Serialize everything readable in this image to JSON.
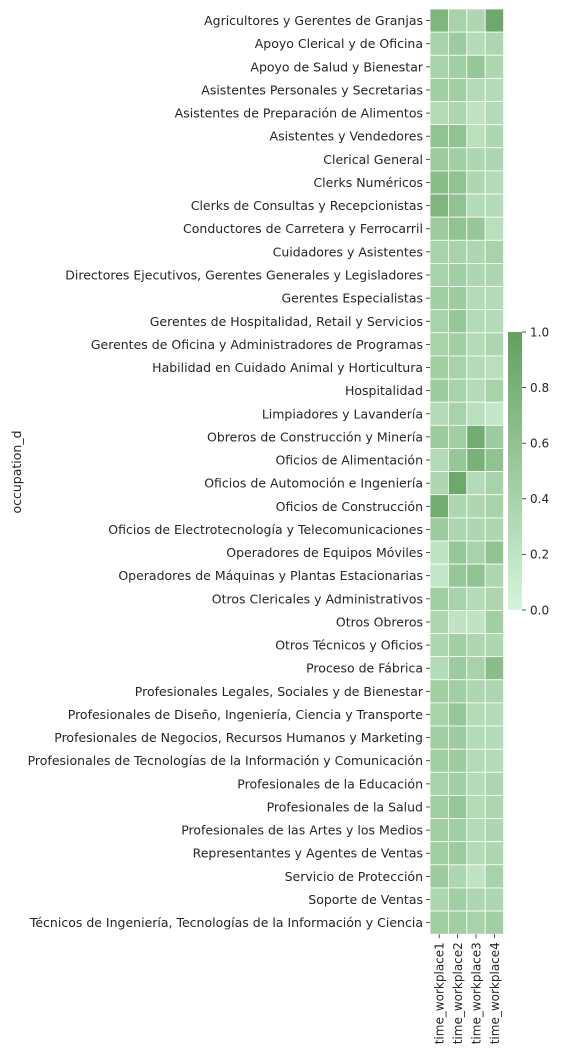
{
  "chart_data": {
    "type": "heatmap",
    "ylabel": "occupation_d",
    "xlabel": "",
    "columns": [
      "time_workplace1",
      "time_workplace2",
      "time_workplace3",
      "time_workplace4"
    ],
    "rows": [
      "Agricultores y Gerentes de Granjas",
      "Apoyo Clerical y de Oficina",
      "Apoyo de Salud y Bienestar",
      "Asistentes Personales y Secretarias",
      "Asistentes de Preparación de Alimentos",
      "Asistentes y Vendedores",
      "Clerical General",
      "Clerks Numéricos",
      "Clerks de Consultas y Recepcionistas",
      "Conductores de Carretera y Ferrocarril",
      "Cuidadores y Asistentes",
      "Directores Ejecutivos, Gerentes Generales y Legisladores",
      "Gerentes Especialistas",
      "Gerentes de Hospitalidad, Retail y Servicios",
      "Gerentes de Oficina y Administradores de Programas",
      "Habilidad en Cuidado Animal y Horticultura",
      "Hospitalidad",
      "Limpiadores y Lavandería",
      "Obreros de Construcción y Minería",
      "Oficios de Alimentación",
      "Oficios de Automoción e Ingeniería",
      "Oficios de Construcción",
      "Oficios de Electrotecnología y Telecomunicaciones",
      "Operadores de Equipos Móviles",
      "Operadores de Máquinas y Plantas Estacionarias",
      "Otros Clericales y Administrativos",
      "Otros Obreros",
      "Otros Técnicos y Oficios",
      "Proceso de Fábrica",
      "Profesionales Legales, Sociales y de Bienestar",
      "Profesionales de Diseño, Ingeniería, Ciencia y Transporte",
      "Profesionales de Negocios, Recursos Humanos y Marketing",
      "Profesionales de Tecnologías de la Información y Comunicación",
      "Profesionales de la Educación",
      "Profesionales de la Salud",
      "Profesionales de las Artes y los Medios",
      "Representantes y Agentes de Ventas",
      "Servicio de Protección",
      "Soporte de Ventas",
      "Técnicos de Ingeniería, Tecnologías de la Información y Ciencia"
    ],
    "values": [
      [
        0.75,
        0.4,
        0.35,
        0.9
      ],
      [
        0.4,
        0.5,
        0.3,
        0.35
      ],
      [
        0.4,
        0.45,
        0.55,
        0.35
      ],
      [
        0.45,
        0.45,
        0.3,
        0.3
      ],
      [
        0.3,
        0.35,
        0.2,
        0.3
      ],
      [
        0.6,
        0.6,
        0.25,
        0.35
      ],
      [
        0.5,
        0.45,
        0.35,
        0.35
      ],
      [
        0.65,
        0.6,
        0.35,
        0.3
      ],
      [
        0.75,
        0.6,
        0.3,
        0.3
      ],
      [
        0.5,
        0.6,
        0.55,
        0.25
      ],
      [
        0.4,
        0.4,
        0.35,
        0.4
      ],
      [
        0.4,
        0.45,
        0.35,
        0.35
      ],
      [
        0.45,
        0.5,
        0.3,
        0.3
      ],
      [
        0.4,
        0.55,
        0.3,
        0.3
      ],
      [
        0.4,
        0.45,
        0.3,
        0.35
      ],
      [
        0.45,
        0.4,
        0.3,
        0.25
      ],
      [
        0.5,
        0.4,
        0.3,
        0.4
      ],
      [
        0.3,
        0.4,
        0.25,
        0.15
      ],
      [
        0.5,
        0.45,
        0.85,
        0.5
      ],
      [
        0.3,
        0.55,
        0.8,
        0.6
      ],
      [
        0.35,
        0.9,
        0.3,
        0.4
      ],
      [
        0.85,
        0.35,
        0.35,
        0.4
      ],
      [
        0.5,
        0.35,
        0.35,
        0.35
      ],
      [
        0.2,
        0.55,
        0.4,
        0.6
      ],
      [
        0.15,
        0.55,
        0.6,
        0.35
      ],
      [
        0.45,
        0.4,
        0.3,
        0.35
      ],
      [
        0.35,
        0.2,
        0.2,
        0.45
      ],
      [
        0.35,
        0.45,
        0.35,
        0.35
      ],
      [
        0.3,
        0.5,
        0.4,
        0.65
      ],
      [
        0.45,
        0.45,
        0.35,
        0.35
      ],
      [
        0.4,
        0.55,
        0.3,
        0.3
      ],
      [
        0.45,
        0.5,
        0.3,
        0.3
      ],
      [
        0.45,
        0.5,
        0.3,
        0.3
      ],
      [
        0.4,
        0.45,
        0.3,
        0.35
      ],
      [
        0.45,
        0.55,
        0.3,
        0.35
      ],
      [
        0.45,
        0.45,
        0.3,
        0.35
      ],
      [
        0.45,
        0.5,
        0.3,
        0.35
      ],
      [
        0.5,
        0.35,
        0.2,
        0.4
      ],
      [
        0.35,
        0.45,
        0.35,
        0.35
      ],
      [
        0.45,
        0.45,
        0.4,
        0.45
      ]
    ],
    "colorbar": {
      "range": [
        0,
        1
      ],
      "ticks": [
        "0.0",
        "0.2",
        "0.4",
        "0.6",
        "0.8",
        "1.0"
      ],
      "color_low": "#d6f4dc",
      "color_high": "#63a060"
    },
    "grid": false
  }
}
